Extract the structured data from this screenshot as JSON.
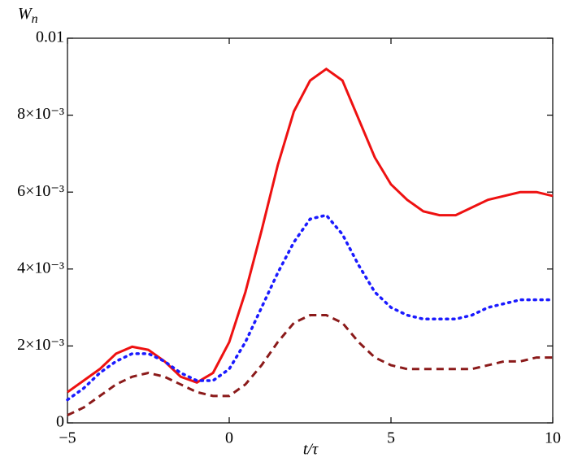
{
  "chart_data": {
    "type": "line",
    "ylabel": {
      "base": "W",
      "sub": "n"
    },
    "xlabel": "t/τ",
    "x": [
      -5,
      -4.5,
      -4,
      -3.5,
      -3,
      -2.5,
      -2,
      -1.5,
      -1,
      -0.5,
      0,
      0.5,
      1,
      1.5,
      2,
      2.5,
      3,
      3.5,
      4,
      4.5,
      5,
      5.5,
      6,
      6.5,
      7,
      7.5,
      8,
      8.5,
      9,
      9.5,
      10
    ],
    "series": [
      {
        "color": "#ee1111",
        "line_style": "solid",
        "values": [
          0.0008,
          0.0011,
          0.0014,
          0.0018,
          0.00198,
          0.0019,
          0.0016,
          0.0012,
          0.00105,
          0.0013,
          0.0021,
          0.0034,
          0.005,
          0.0067,
          0.0081,
          0.0089,
          0.0092,
          0.0089,
          0.0079,
          0.0069,
          0.0062,
          0.0058,
          0.0055,
          0.0054,
          0.0054,
          0.0056,
          0.0058,
          0.0059,
          0.006,
          0.006,
          0.0059
        ]
      },
      {
        "color": "#1a1aff",
        "line_style": "dotted",
        "values": [
          0.0006,
          0.0009,
          0.0013,
          0.0016,
          0.0018,
          0.0018,
          0.0016,
          0.0013,
          0.0011,
          0.0011,
          0.0014,
          0.0021,
          0.003,
          0.0039,
          0.0047,
          0.0053,
          0.0054,
          0.0049,
          0.0041,
          0.0034,
          0.003,
          0.0028,
          0.0027,
          0.0027,
          0.0027,
          0.0028,
          0.003,
          0.0031,
          0.0032,
          0.0032,
          0.0032
        ]
      },
      {
        "color": "#8b1a1a",
        "line_style": "dashed",
        "values": [
          0.0002,
          0.0004,
          0.0007,
          0.001,
          0.0012,
          0.0013,
          0.0012,
          0.001,
          0.0008,
          0.0007,
          0.0007,
          0.001,
          0.0015,
          0.0021,
          0.0026,
          0.0028,
          0.0028,
          0.0026,
          0.0021,
          0.0017,
          0.0015,
          0.0014,
          0.0014,
          0.0014,
          0.0014,
          0.0014,
          0.0015,
          0.0016,
          0.0016,
          0.0017,
          0.0017
        ]
      }
    ],
    "xlim": [
      -5,
      10
    ],
    "xticks": [
      {
        "value": -5,
        "label": "−5"
      },
      0,
      5,
      10
    ],
    "ylim": [
      0,
      0.01
    ],
    "yticks": [
      0,
      {
        "value": 0.002,
        "label": "2×10⁻³"
      },
      {
        "value": 0.004,
        "label": "4×10⁻³"
      },
      {
        "value": 0.006,
        "label": "6×10⁻³"
      },
      {
        "value": 0.008,
        "label": "8×10⁻³"
      },
      0.01
    ],
    "grid": false
  }
}
